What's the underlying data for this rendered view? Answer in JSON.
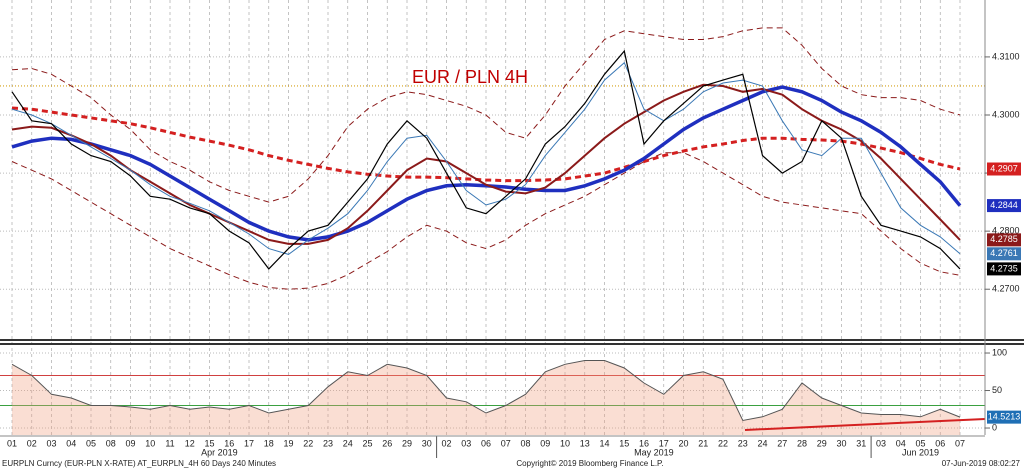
{
  "chart_data": [
    {
      "type": "line",
      "title": "EUR / PLN 4H",
      "categories": [
        "01",
        "02",
        "03",
        "04",
        "05",
        "08",
        "09",
        "10",
        "11",
        "12",
        "15",
        "16",
        "17",
        "18",
        "19",
        "22",
        "23",
        "24",
        "25",
        "26",
        "29",
        "30",
        "02",
        "03",
        "06",
        "07",
        "08",
        "09",
        "10",
        "13",
        "14",
        "15",
        "16",
        "17",
        "20",
        "21",
        "22",
        "23",
        "24",
        "27",
        "28",
        "29",
        "30",
        "31",
        "03",
        "04",
        "05",
        "06",
        "07"
      ],
      "month_labels": [
        "Apr 2019",
        "May 2019",
        "Jun 2019"
      ],
      "ylim": [
        4.2616,
        4.3198
      ],
      "yticks": [
        {
          "value": 4.27,
          "label": "4.2700"
        },
        {
          "value": 4.28,
          "label": "4.2800"
        },
        {
          "value": 4.29,
          "label": "4.2900"
        },
        {
          "value": 4.3,
          "label": "4.3000"
        },
        {
          "value": 4.31,
          "label": "4.3100"
        }
      ],
      "grid": true,
      "reference_line": {
        "value": 4.305,
        "color": "#d4a017"
      },
      "series": [
        {
          "color": "#8b1a1a",
          "dash": true,
          "width": 1,
          "show_last": false,
          "values": [
            4.3078,
            4.308,
            4.307,
            4.305,
            4.303,
            4.3,
            4.2975,
            4.294,
            4.292,
            4.2905,
            4.2885,
            4.287,
            4.286,
            4.285,
            4.286,
            4.289,
            4.293,
            4.298,
            4.301,
            4.303,
            4.304,
            4.3035,
            4.3025,
            4.3015,
            4.3,
            4.297,
            4.296,
            4.3,
            4.305,
            4.309,
            4.313,
            4.3145,
            4.314,
            4.3135,
            4.313,
            4.313,
            4.3135,
            4.3145,
            4.315,
            4.315,
            4.312,
            4.308,
            4.305,
            4.3035,
            4.303,
            4.303,
            4.3025,
            4.301,
            4.3
          ]
        },
        {
          "color": "#8b1a1a",
          "dash": true,
          "width": 1,
          "show_last": false,
          "values": [
            4.292,
            4.2905,
            4.289,
            4.287,
            4.285,
            4.283,
            4.281,
            4.279,
            4.277,
            4.2755,
            4.274,
            4.2725,
            4.2712,
            4.2703,
            4.27,
            4.2702,
            4.271,
            4.2725,
            4.2745,
            4.2765,
            4.279,
            4.281,
            4.28,
            4.278,
            4.277,
            4.2785,
            4.281,
            4.283,
            4.2845,
            4.286,
            4.288,
            4.29,
            4.292,
            4.2935,
            4.2935,
            4.292,
            4.29,
            4.288,
            4.286,
            4.285,
            4.2845,
            4.284,
            4.2835,
            4.283,
            4.28,
            4.277,
            4.2745,
            4.273,
            4.2724
          ]
        },
        {
          "color": "#d42020",
          "dash": true,
          "width": 3,
          "show_last": true,
          "values": [
            4.3012,
            4.301,
            4.3005,
            4.3,
            4.2995,
            4.299,
            4.2985,
            4.2978,
            4.297,
            4.2962,
            4.2955,
            4.2948,
            4.294,
            4.293,
            4.2922,
            4.2915,
            4.2908,
            4.2902,
            4.2898,
            4.2895,
            4.2893,
            4.2893,
            4.2892,
            4.289,
            4.2888,
            4.2887,
            4.2887,
            4.2888,
            4.289,
            4.2895,
            4.29,
            4.291,
            4.292,
            4.293,
            4.2938,
            4.2945,
            4.295,
            4.2956,
            4.296,
            4.296,
            4.2958,
            4.2957,
            4.2955,
            4.295,
            4.2943,
            4.2935,
            4.2925,
            4.2915,
            4.2907
          ]
        },
        {
          "color": "#1f2fbf",
          "dash": false,
          "width": 3.5,
          "show_last": true,
          "values": [
            4.2945,
            4.2955,
            4.296,
            4.2958,
            4.295,
            4.294,
            4.293,
            4.2915,
            4.2895,
            4.2875,
            4.2855,
            4.2835,
            4.2815,
            4.28,
            4.279,
            4.2785,
            4.279,
            4.28,
            4.2815,
            4.2835,
            4.2855,
            4.287,
            4.2878,
            4.288,
            4.2878,
            4.2876,
            4.2872,
            4.287,
            4.287,
            4.2878,
            4.289,
            4.2905,
            4.2925,
            4.295,
            4.2975,
            4.2995,
            4.301,
            4.3025,
            4.304,
            4.3048,
            4.304,
            4.3025,
            4.3005,
            4.299,
            4.297,
            4.2945,
            4.2915,
            4.2885,
            4.2844
          ]
        },
        {
          "color": "#8b1a1a",
          "dash": false,
          "width": 2,
          "show_last": true,
          "values": [
            4.2975,
            4.298,
            4.2978,
            4.2965,
            4.295,
            4.293,
            4.2905,
            4.2885,
            4.2865,
            4.2845,
            4.283,
            4.2815,
            4.28,
            4.2785,
            4.2778,
            4.2778,
            4.2785,
            4.2805,
            4.2835,
            4.287,
            4.2905,
            4.2925,
            4.292,
            4.29,
            4.288,
            4.2868,
            4.2865,
            4.2875,
            4.29,
            4.293,
            4.296,
            4.2985,
            4.3005,
            4.3025,
            4.304,
            4.3052,
            4.305,
            4.304,
            4.3045,
            4.3035,
            4.301,
            4.299,
            4.2975,
            4.2955,
            4.2925,
            4.289,
            4.2855,
            4.282,
            4.2785
          ]
        },
        {
          "color": "#3a78b5",
          "dash": false,
          "width": 1,
          "show_last": true,
          "values": [
            4.301,
            4.3,
            4.2985,
            4.2965,
            4.2945,
            4.2925,
            4.2905,
            4.288,
            4.286,
            4.2848,
            4.2835,
            4.2815,
            4.2795,
            4.277,
            4.276,
            4.2785,
            4.2805,
            4.283,
            4.287,
            4.292,
            4.296,
            4.2965,
            4.292,
            4.287,
            4.2845,
            4.2855,
            4.288,
            4.293,
            4.297,
            4.301,
            4.306,
            4.309,
            4.301,
            4.299,
            4.301,
            4.304,
            4.3055,
            4.306,
            4.305,
            4.299,
            4.294,
            4.293,
            4.296,
            4.296,
            4.29,
            4.284,
            4.281,
            4.279,
            4.2761
          ]
        },
        {
          "color": "#000000",
          "dash": false,
          "width": 1.2,
          "show_last": true,
          "values": [
            4.304,
            4.299,
            4.2985,
            4.295,
            4.293,
            4.292,
            4.2895,
            4.286,
            4.2855,
            4.284,
            4.283,
            4.28,
            4.278,
            4.2735,
            4.277,
            4.28,
            4.281,
            4.285,
            4.289,
            4.295,
            4.299,
            4.296,
            4.29,
            4.284,
            4.283,
            4.286,
            4.289,
            4.295,
            4.298,
            4.302,
            4.307,
            4.311,
            4.295,
            4.299,
            4.302,
            4.305,
            4.306,
            4.307,
            4.293,
            4.29,
            4.292,
            4.299,
            4.296,
            4.286,
            4.281,
            4.28,
            4.279,
            4.277,
            4.2735
          ]
        }
      ]
    },
    {
      "type": "line",
      "ylim": [
        -9.3,
        110.7
      ],
      "yticks": [
        0,
        50,
        100
      ],
      "levels": [
        {
          "value": 70,
          "color": "#d04040"
        },
        {
          "value": 30,
          "color": "#3aa040"
        }
      ],
      "series": [
        {
          "color": "#555555",
          "fill": "#f0a080",
          "show_last": true,
          "label_color": "#1f6fb5",
          "values": [
            85,
            70,
            45,
            40,
            30,
            30,
            28,
            25,
            30,
            25,
            28,
            25,
            30,
            20,
            25,
            30,
            55,
            75,
            70,
            85,
            80,
            70,
            40,
            35,
            20,
            30,
            45,
            75,
            85,
            90,
            90,
            80,
            60,
            45,
            70,
            75,
            65,
            10,
            15,
            25,
            60,
            40,
            30,
            20,
            18,
            18,
            15,
            25,
            14.5213
          ]
        }
      ]
    }
  ],
  "footer": {
    "left": "EURPLN Curncy (EUR-PLN X-RATE) AT_EURPLN_4H 60 Days 240 Minutes",
    "center": "Copyright© 2019 Bloomberg Finance L.P.",
    "right": "07-Jun-2019 08:02:27"
  }
}
